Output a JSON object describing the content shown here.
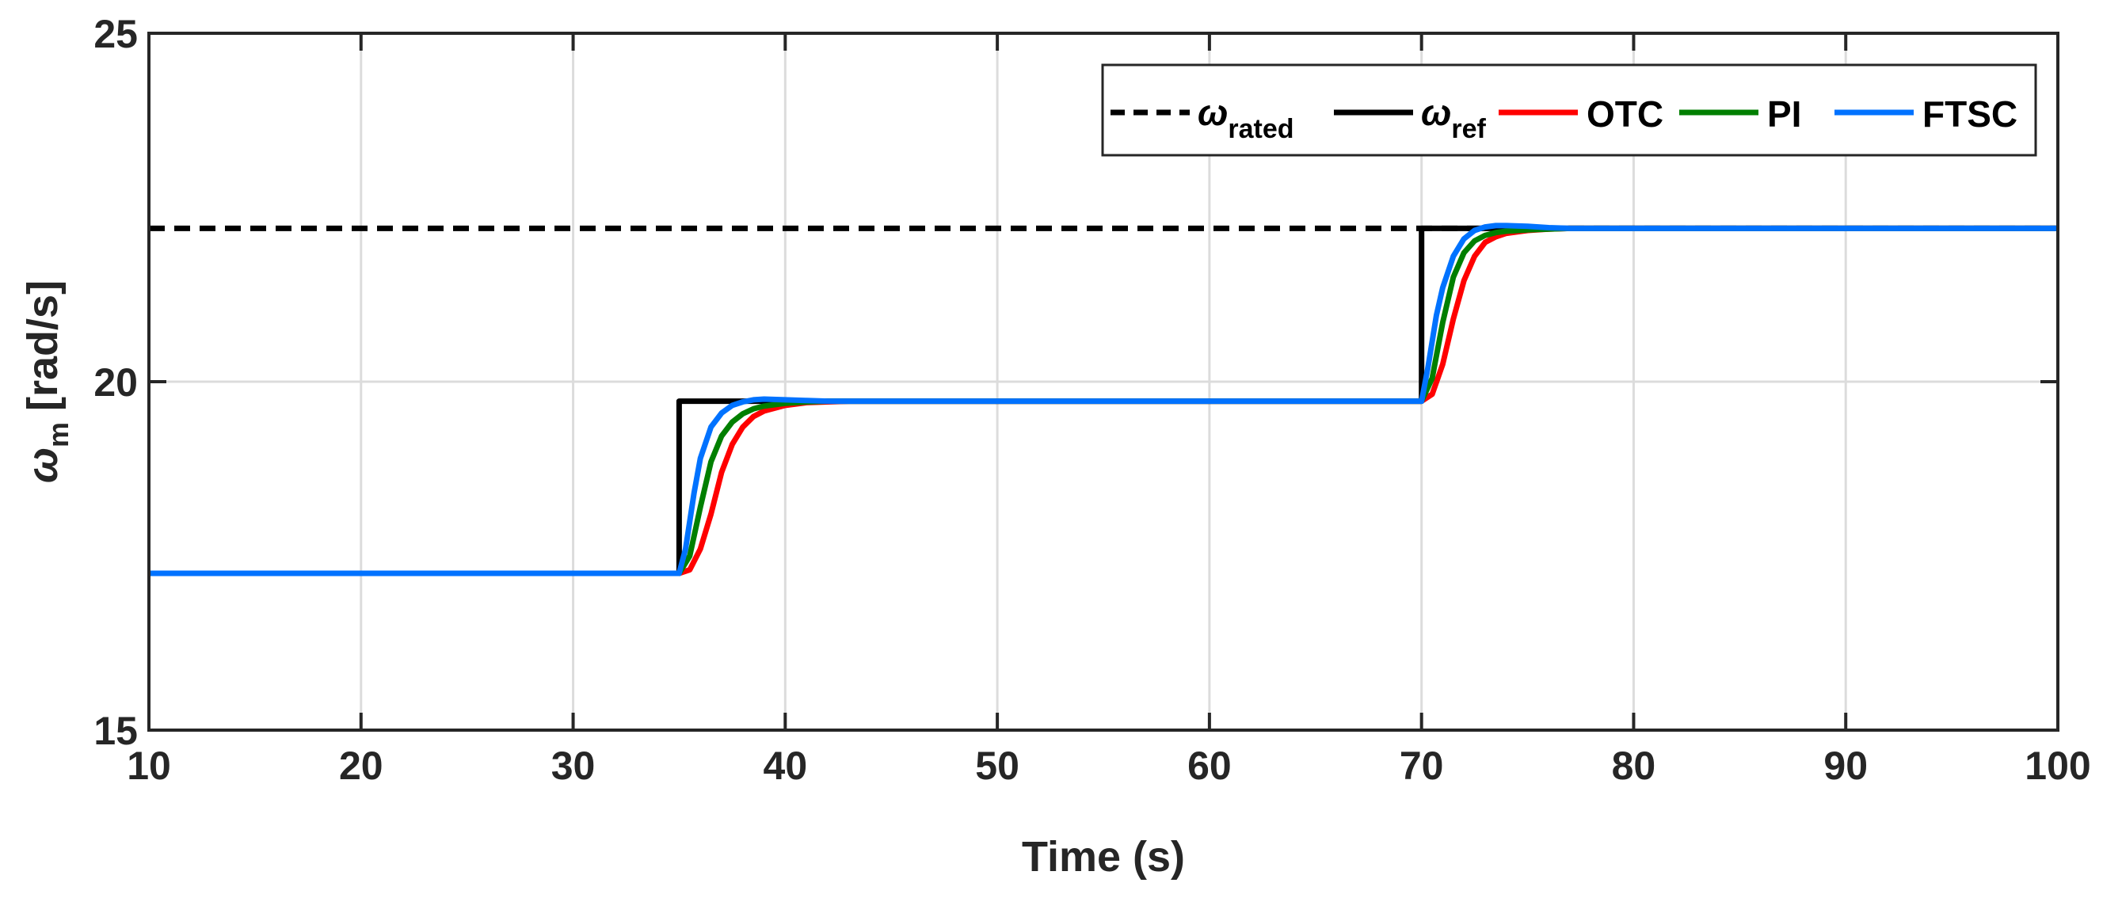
{
  "chart_data": {
    "type": "line",
    "xlabel": "Time (s)",
    "ylabel_symbol": "ω",
    "ylabel_sub": "m",
    "ylabel_unit": "[rad/s]",
    "xlim": [
      10,
      100
    ],
    "ylim": [
      15,
      25
    ],
    "xticks": [
      10,
      20,
      30,
      40,
      50,
      60,
      70,
      80,
      90,
      100
    ],
    "yticks": [
      15,
      20,
      25
    ],
    "grid": true,
    "legend_position": "top-right",
    "colors": {
      "rated": "#000000",
      "ref": "#000000",
      "OTC": "#ff0000",
      "PI": "#007f00",
      "FTSC": "#0072ff"
    },
    "series": [
      {
        "name": "ω_rated",
        "symbol": "ω",
        "sub": "rated",
        "style": "dashed",
        "color": "#000000",
        "x": [
          10,
          100
        ],
        "y": [
          22.2,
          22.2
        ]
      },
      {
        "name": "ω_ref",
        "symbol": "ω",
        "sub": "ref",
        "style": "solid",
        "color": "#000000",
        "x": [
          10,
          35,
          35,
          70,
          70,
          100
        ],
        "y": [
          17.25,
          17.25,
          19.72,
          19.72,
          22.2,
          22.2
        ]
      },
      {
        "name": "OTC",
        "label": "OTC",
        "style": "solid",
        "color": "#ff0000",
        "x": [
          10,
          35,
          35.5,
          36,
          36.5,
          37,
          37.5,
          38,
          38.5,
          39,
          40,
          41,
          42,
          43,
          50,
          70,
          70.5,
          71,
          71.5,
          72,
          72.5,
          73,
          73.5,
          74,
          75,
          76,
          77,
          78,
          100
        ],
        "y": [
          17.25,
          17.25,
          17.3,
          17.6,
          18.1,
          18.7,
          19.1,
          19.35,
          19.5,
          19.58,
          19.66,
          19.7,
          19.71,
          19.72,
          19.72,
          19.72,
          19.82,
          20.25,
          20.9,
          21.45,
          21.8,
          22.0,
          22.08,
          22.13,
          22.17,
          22.19,
          22.2,
          22.2,
          22.2
        ]
      },
      {
        "name": "PI",
        "label": "PI",
        "style": "solid",
        "color": "#007f00",
        "x": [
          10,
          35,
          35.5,
          36,
          36.5,
          37,
          37.5,
          38,
          38.5,
          39,
          40,
          41,
          42,
          50,
          70,
          70.5,
          71,
          71.5,
          72,
          72.5,
          73,
          73.5,
          74,
          75,
          76,
          77,
          100
        ],
        "y": [
          17.25,
          17.25,
          17.5,
          18.2,
          18.85,
          19.22,
          19.42,
          19.54,
          19.61,
          19.65,
          19.69,
          19.71,
          19.72,
          19.72,
          19.72,
          20.05,
          20.85,
          21.5,
          21.85,
          22.02,
          22.1,
          22.14,
          22.16,
          22.18,
          22.19,
          22.2,
          22.2
        ]
      },
      {
        "name": "FTSC",
        "label": "FTSC",
        "style": "solid",
        "color": "#0072ff",
        "x": [
          10,
          35,
          35.3,
          35.7,
          36,
          36.5,
          37,
          37.5,
          38,
          38.5,
          39,
          40,
          41,
          42,
          50,
          70,
          70.3,
          70.7,
          71,
          71.5,
          72,
          72.5,
          73,
          73.5,
          74,
          75,
          76,
          77,
          100
        ],
        "y": [
          17.25,
          17.25,
          17.6,
          18.4,
          18.9,
          19.35,
          19.55,
          19.66,
          19.71,
          19.74,
          19.75,
          19.74,
          19.73,
          19.72,
          19.72,
          19.72,
          20.2,
          20.95,
          21.35,
          21.8,
          22.05,
          22.17,
          22.22,
          22.24,
          22.24,
          22.23,
          22.21,
          22.2,
          22.2
        ]
      }
    ]
  }
}
